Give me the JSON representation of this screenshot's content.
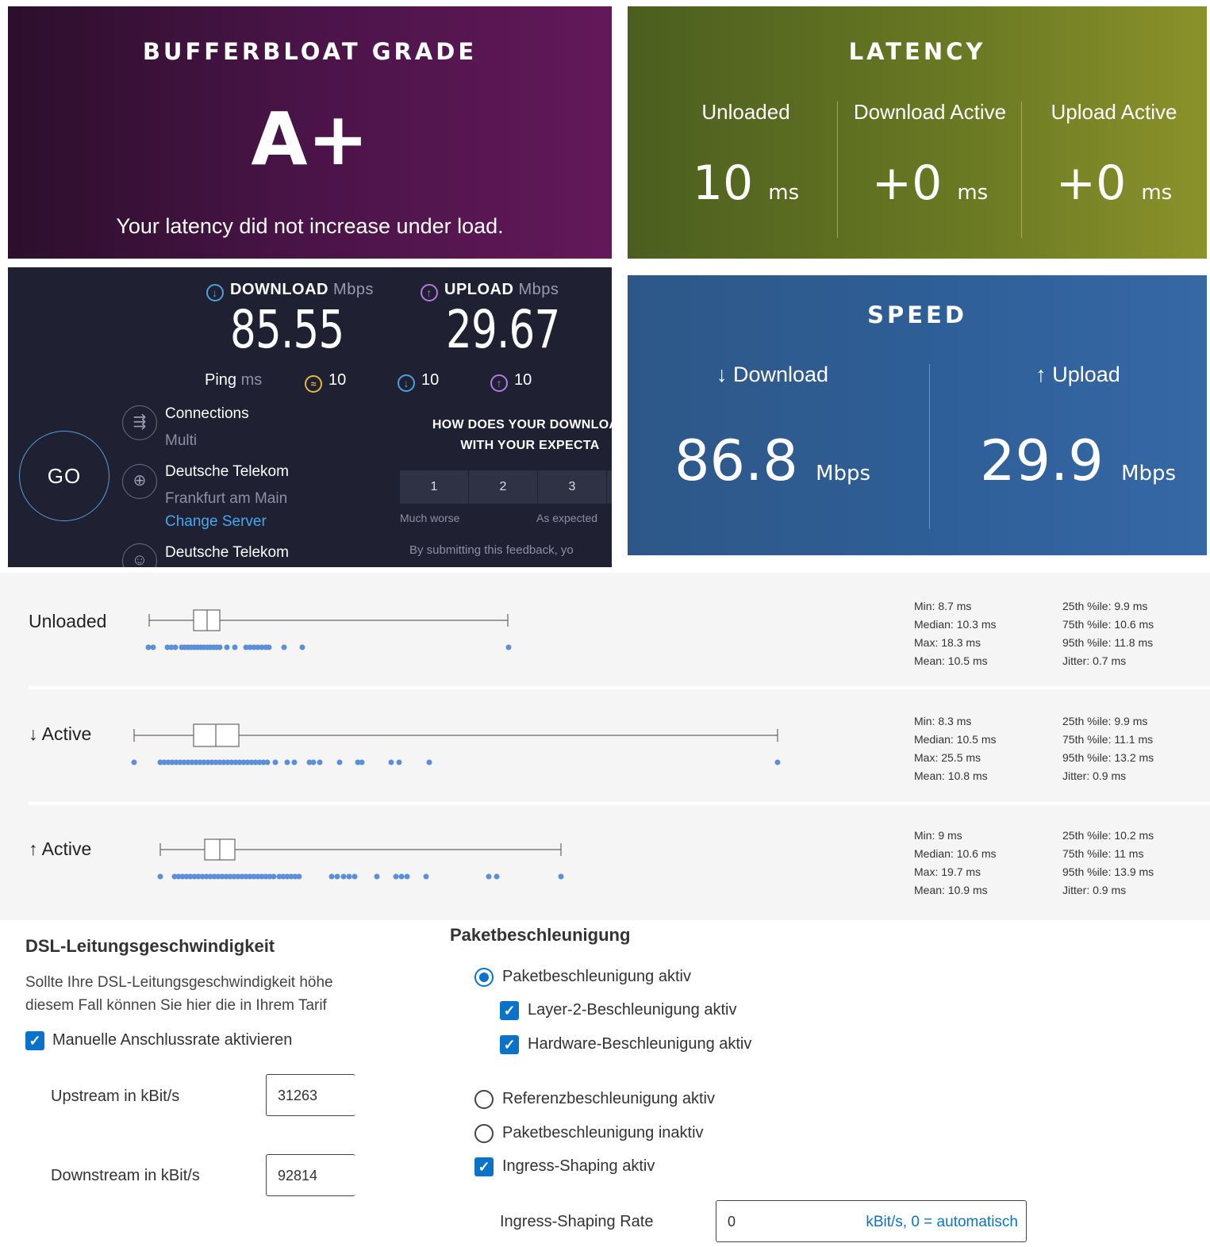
{
  "bufferbloat": {
    "title": "BUFFERBLOAT GRADE",
    "grade": "A+",
    "message": "Your latency did not increase under load."
  },
  "latency": {
    "title": "LATENCY",
    "columns": [
      {
        "label": "Unloaded",
        "value": "10",
        "unit": "ms"
      },
      {
        "label": "Download Active",
        "value": "+0",
        "unit": "ms"
      },
      {
        "label": "Upload Active",
        "value": "+0",
        "unit": "ms"
      }
    ]
  },
  "speedtest": {
    "download_label": "DOWNLOAD",
    "upload_label": "UPLOAD",
    "unit": "Mbps",
    "download_value": "85.55",
    "upload_value": "29.67",
    "ping_label": "Ping",
    "ping_unit": "ms",
    "ping_idle": "10",
    "ping_download": "10",
    "ping_upload": "10",
    "go_label": "GO",
    "connections_label": "Connections",
    "connections_value": "Multi",
    "server_isp": "Deutsche Telekom",
    "server_city": "Frankfurt am Main",
    "change_server": "Change Server",
    "provider": "Deutsche Telekom",
    "question_line1": "HOW DOES YOUR DOWNLOAD",
    "question_line2": "WITH YOUR EXPECTA",
    "ratings": [
      "1",
      "2",
      "3"
    ],
    "rating_low": "Much worse",
    "rating_mid": "As expected",
    "disclaimer": "By submitting this feedback, yo"
  },
  "speed": {
    "title": "SPEED",
    "download_label": "↓ Download",
    "upload_label": "↑ Upload",
    "download_value": "86.8",
    "upload_value": "29.9",
    "unit": "Mbps"
  },
  "distribution": {
    "rows": [
      {
        "label": "Unloaded",
        "stats_left": [
          "Min: 8.7 ms",
          "Median: 10.3 ms",
          "Max: 18.3 ms",
          "Mean: 10.5 ms"
        ],
        "stats_right": [
          "25th %ile: 9.9 ms",
          "75th %ile: 10.6 ms",
          "95th %ile: 11.8 ms",
          "Jitter: 0.7 ms"
        ]
      },
      {
        "label": "↓ Active",
        "stats_left": [
          "Min: 8.3 ms",
          "Median: 10.5 ms",
          "Max: 25.5 ms",
          "Mean: 10.8 ms"
        ],
        "stats_right": [
          "25th %ile: 9.9 ms",
          "75th %ile: 11.1 ms",
          "95th %ile: 13.2 ms",
          "Jitter: 0.9 ms"
        ]
      },
      {
        "label": "↑ Active",
        "stats_left": [
          "Min: 9 ms",
          "Median: 10.6 ms",
          "Max: 19.7 ms",
          "Mean: 10.9 ms"
        ],
        "stats_right": [
          "25th %ile: 10.2 ms",
          "75th %ile: 11 ms",
          "95th %ile: 13.9 ms",
          "Jitter: 0.9 ms"
        ]
      }
    ]
  },
  "dsl": {
    "heading": "DSL-Leitungsgeschwindigkeit",
    "text_line1": "Sollte Ihre DSL-Leitungsgeschwindigkeit höhe",
    "text_line2": "diesem Fall können Sie hier die in Ihrem Tarif",
    "manual_label": "Manuelle Anschlussrate aktivieren",
    "manual_checked": true,
    "upstream_label": "Upstream in kBit/s",
    "upstream_value": "31263",
    "downstream_label": "Downstream in kBit/s",
    "downstream_value": "92814"
  },
  "packet": {
    "heading": "Paketbeschleunigung",
    "opt_active": "Paketbeschleunigung aktiv",
    "opt_layer2": "Layer-2-Beschleunigung aktiv",
    "opt_hardware": "Hardware-Beschleunigung aktiv",
    "opt_reference": "Referenzbeschleunigung aktiv",
    "opt_inactive": "Paketbeschleunigung inaktiv",
    "opt_ingress": "Ingress-Shaping aktiv",
    "ingress_rate_label": "Ingress-Shaping Rate",
    "ingress_rate_value": "0",
    "ingress_rate_unit": "kBit/s, 0 = automatisch"
  },
  "colors": {
    "grade_bg": "#4a1448",
    "latency_bg": "#6b7a23",
    "speed_bg": "#2e5e96",
    "speedtest_bg": "#1f2032",
    "accent_blue": "#0a73c9",
    "dot_blue": "#5b8fd8"
  }
}
